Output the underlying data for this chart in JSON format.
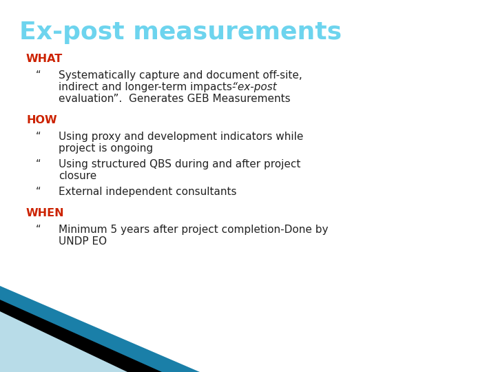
{
  "title": "Ex-post measurements",
  "title_color": "#6DD4EE",
  "title_fontsize": 26,
  "background_color": "#FFFFFF",
  "heading_color": "#CC2200",
  "heading_fontsize": 11.5,
  "body_color": "#222222",
  "body_fontsize": 11.0,
  "corner_colors": [
    "#1A7FA8",
    "#000000",
    "#B8DCE8"
  ],
  "sections": [
    {
      "heading": "WHAT",
      "items": [
        {
          "lines": [
            {
              "text": "Systematically capture and document off-site,",
              "italic": false
            },
            {
              "text": "indirect and longer-term impacts-  “ex-post",
              "italic_from": 33,
              "italic_part": "“ex-post"
            },
            {
              "text": "evaluation”.  Generates GEB Measurements",
              "italic": false
            }
          ],
          "bullet": true
        }
      ]
    },
    {
      "heading": "HOW",
      "items": [
        {
          "lines": [
            {
              "text": "Using proxy and development indicators while",
              "italic": false
            },
            {
              "text": "project is ongoing",
              "italic": false
            }
          ],
          "bullet": true
        },
        {
          "lines": [
            {
              "text": "Using structured QBS during and after project",
              "italic": false
            },
            {
              "text": "closure",
              "italic": false
            }
          ],
          "bullet": true
        },
        {
          "lines": [
            {
              "text": "External independent consultants",
              "italic": false
            }
          ],
          "bullet": true
        }
      ]
    },
    {
      "heading": "WHEN",
      "items": [
        {
          "lines": [
            {
              "text": "Minimum 5 years after project completion-Done by",
              "italic": false
            },
            {
              "text": "UNDP EO",
              "italic": false
            }
          ],
          "bullet": true
        }
      ]
    }
  ]
}
